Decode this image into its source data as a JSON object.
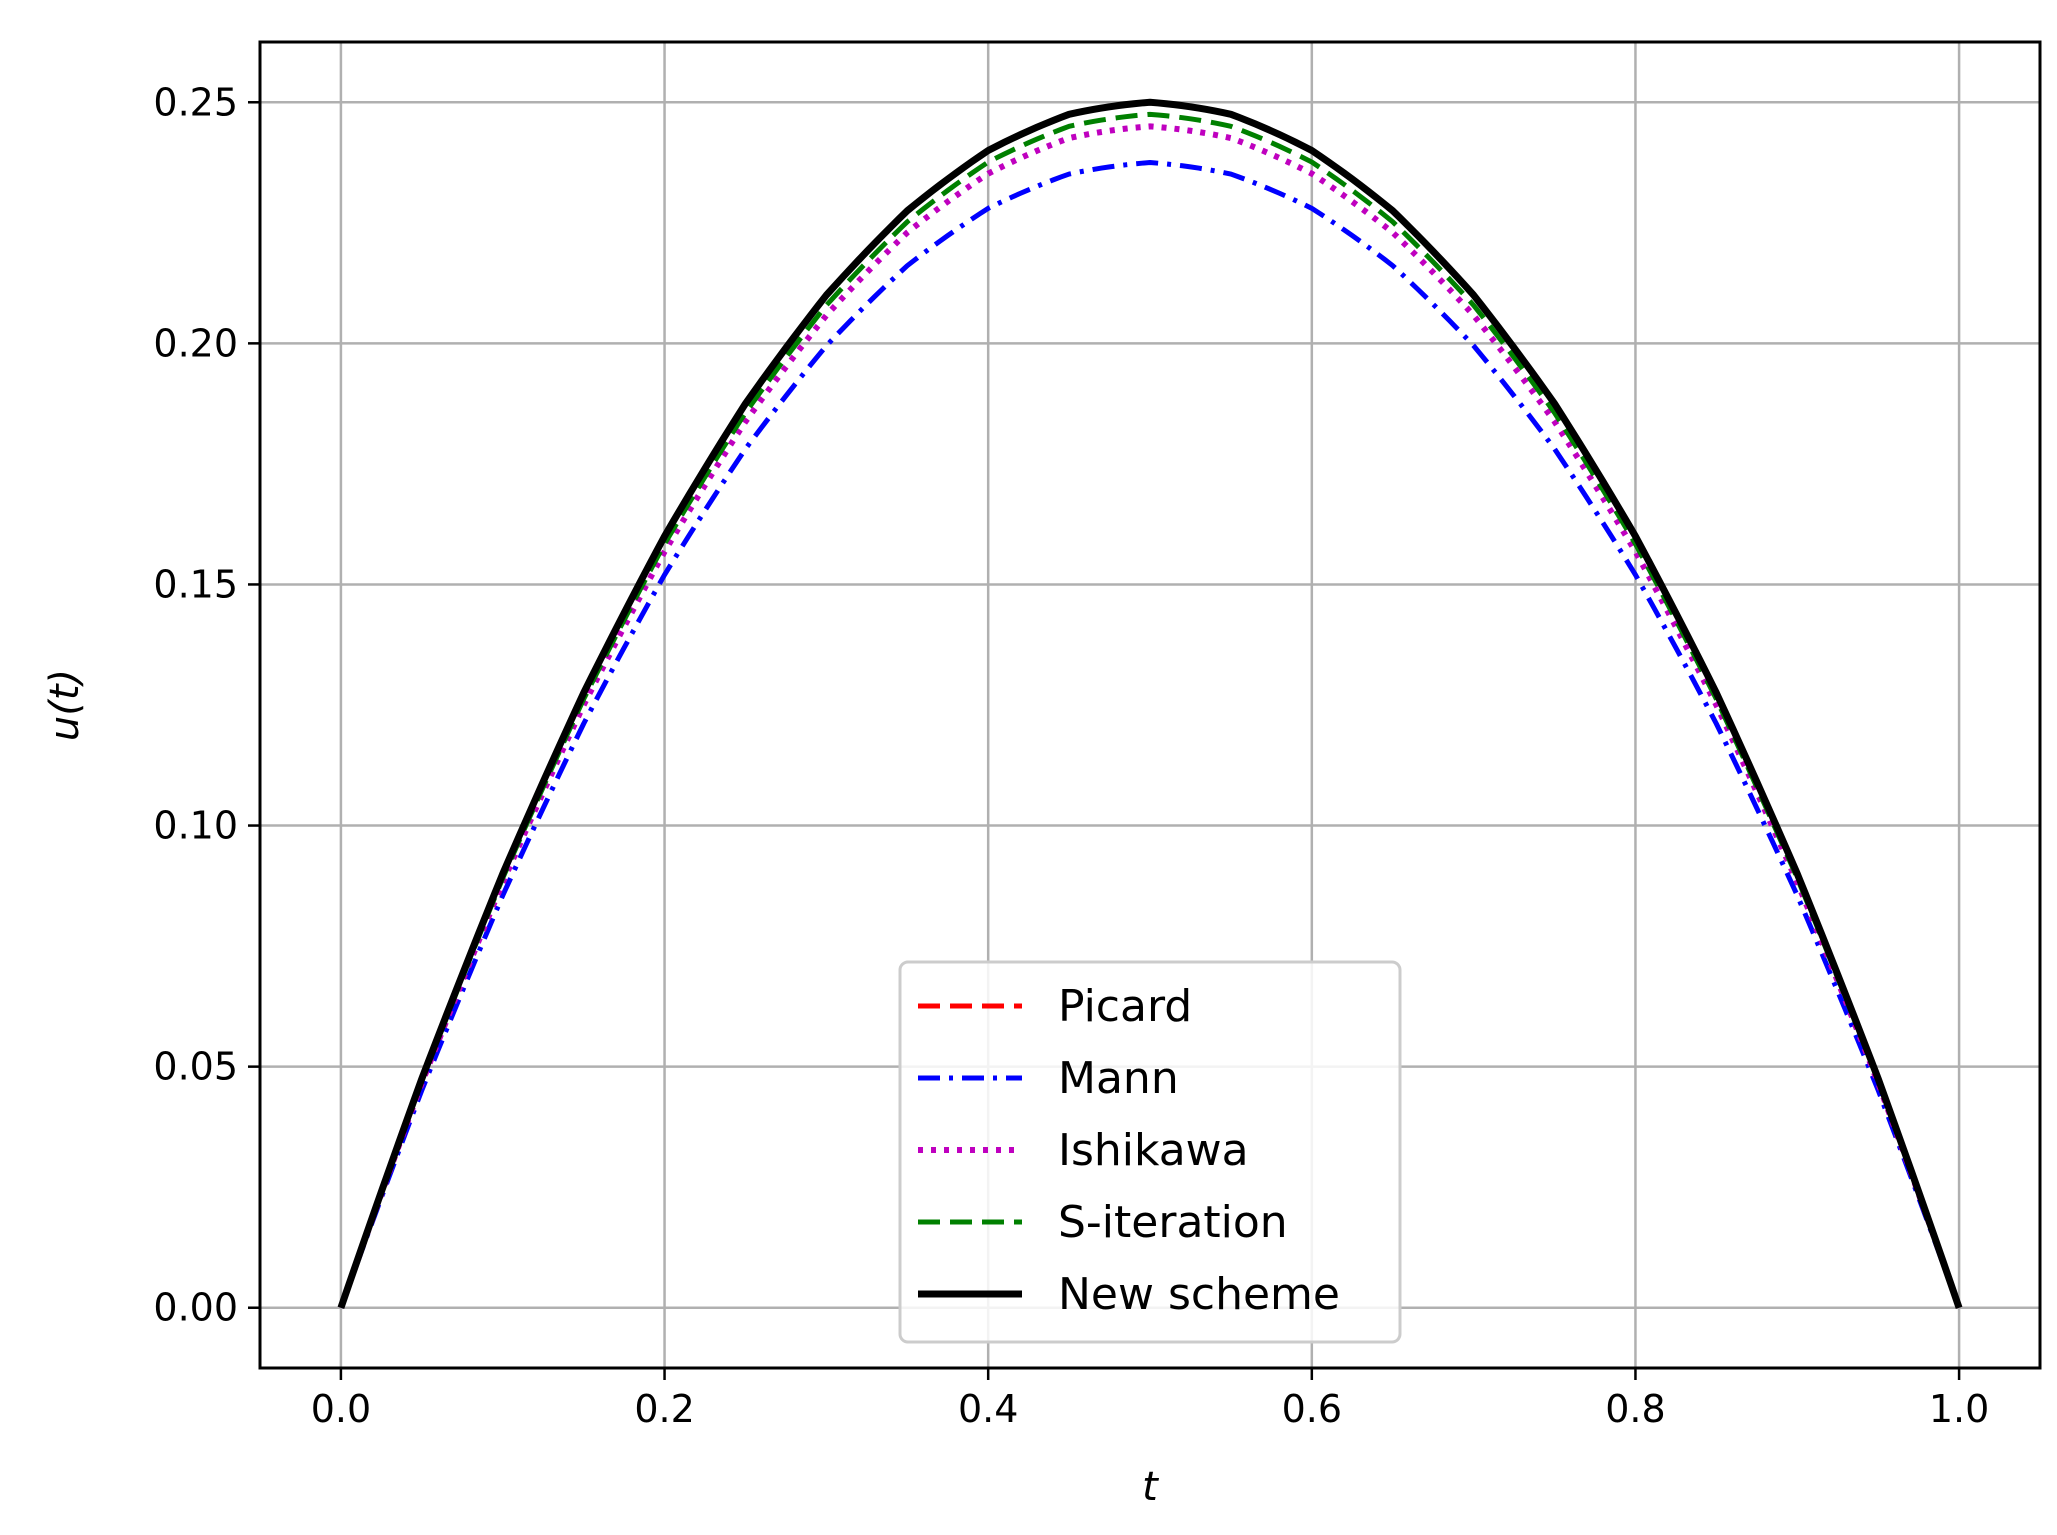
{
  "chart_data": {
    "type": "line",
    "title": "",
    "xlabel": "t",
    "ylabel": "u(t)",
    "xlim": [
      -0.05,
      1.05
    ],
    "ylim": [
      -0.0125,
      0.2625
    ],
    "grid": true,
    "legend_position": "lower-center",
    "x_ticks": [
      {
        "value": 0.0,
        "label": "0.0"
      },
      {
        "value": 0.2,
        "label": "0.2"
      },
      {
        "value": 0.4,
        "label": "0.4"
      },
      {
        "value": 0.6,
        "label": "0.6"
      },
      {
        "value": 0.8,
        "label": "0.8"
      },
      {
        "value": 1.0,
        "label": "1.0"
      }
    ],
    "y_ticks": [
      {
        "value": 0.0,
        "label": "0.00"
      },
      {
        "value": 0.05,
        "label": "0.05"
      },
      {
        "value": 0.1,
        "label": "0.10"
      },
      {
        "value": 0.15,
        "label": "0.15"
      },
      {
        "value": 0.2,
        "label": "0.20"
      },
      {
        "value": 0.25,
        "label": "0.25"
      }
    ],
    "x": [
      0.0,
      0.05,
      0.1,
      0.15,
      0.2,
      0.25,
      0.3,
      0.35,
      0.4,
      0.45,
      0.5,
      0.55,
      0.6,
      0.65,
      0.7,
      0.75,
      0.8,
      0.85,
      0.9,
      0.95,
      1.0
    ],
    "series": [
      {
        "name": "Picard",
        "color": "#ff0000",
        "style": "dashed",
        "values": [
          0.0,
          0.0475,
          0.09,
          0.1275,
          0.16,
          0.1875,
          0.21,
          0.2275,
          0.24,
          0.2475,
          0.25,
          0.2475,
          0.24,
          0.2275,
          0.21,
          0.1875,
          0.16,
          0.1275,
          0.09,
          0.0475,
          0.0
        ]
      },
      {
        "name": "Mann",
        "color": "#0000ff",
        "style": "dashdot",
        "values": [
          0.0,
          0.0451,
          0.0855,
          0.1211,
          0.152,
          0.1781,
          0.1995,
          0.2161,
          0.228,
          0.2351,
          0.2375,
          0.2351,
          0.228,
          0.2161,
          0.1995,
          0.1781,
          0.152,
          0.1211,
          0.0855,
          0.0451,
          0.0
        ]
      },
      {
        "name": "Ishikawa",
        "color": "#bf00bf",
        "style": "dotted",
        "values": [
          0.0,
          0.0466,
          0.0882,
          0.125,
          0.1568,
          0.1838,
          0.2058,
          0.223,
          0.2352,
          0.2426,
          0.245,
          0.2426,
          0.2352,
          0.223,
          0.2058,
          0.1838,
          0.1568,
          0.125,
          0.0882,
          0.0466,
          0.0
        ]
      },
      {
        "name": "S-iteration",
        "color": "#008000",
        "style": "dashed",
        "values": [
          0.0,
          0.047,
          0.0891,
          0.1262,
          0.1584,
          0.1856,
          0.2079,
          0.2252,
          0.2376,
          0.245,
          0.2475,
          0.245,
          0.2376,
          0.2252,
          0.2079,
          0.1856,
          0.1584,
          0.1262,
          0.0891,
          0.047,
          0.0
        ]
      },
      {
        "name": "New scheme",
        "color": "#000000",
        "style": "solid",
        "values": [
          0.0,
          0.0475,
          0.09,
          0.1275,
          0.16,
          0.1875,
          0.21,
          0.2275,
          0.24,
          0.2475,
          0.25,
          0.2475,
          0.24,
          0.2275,
          0.21,
          0.1875,
          0.16,
          0.1275,
          0.09,
          0.0475,
          0.0
        ]
      }
    ]
  }
}
